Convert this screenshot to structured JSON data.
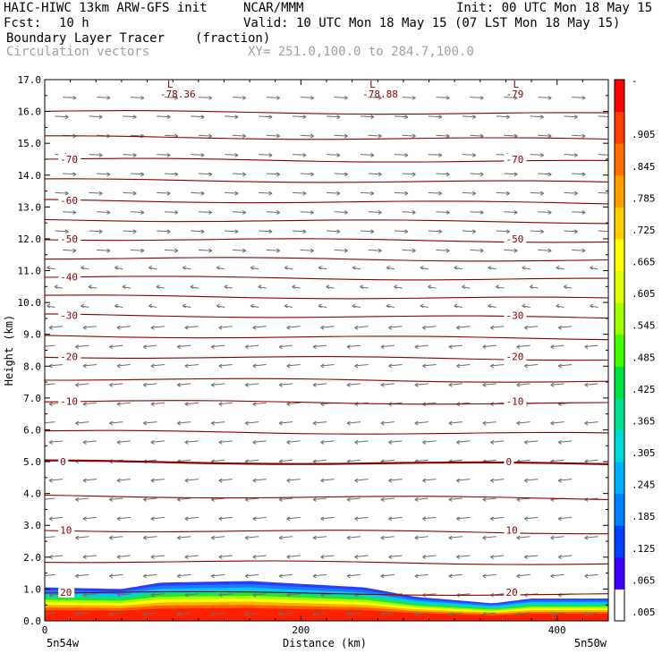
{
  "header": {
    "model": "HAIC-HIWC 13km ARW-GFS init",
    "org": "NCAR/MMM",
    "init": "Init: 00 UTC Mon 18 May 15",
    "fcst_label": "Fcst:",
    "fcst_value": "10 h",
    "valid": "Valid: 10 UTC Mon 18 May 15 (07 LST Mon 18 May 15)",
    "field": "Boundary Layer Tracer",
    "units": "(fraction)",
    "vectors": "Circulation vectors",
    "xy": "XY= 251.0,100.0 to 284.7,100.0"
  },
  "chart_data": {
    "type": "heatmap",
    "title": "Boundary Layer Tracer",
    "xlabel": "Distance (km)",
    "ylabel": "Height (km)",
    "xlim": [
      0,
      440
    ],
    "ylim": [
      0,
      17
    ],
    "x_ticks": [
      "0",
      "200",
      "400"
    ],
    "x_tick_values": [
      0,
      200,
      400
    ],
    "x_end_labels": [
      "5n54w",
      "5n50w"
    ],
    "y_ticks": [
      "0.0",
      "1.0",
      "2.0",
      "3.0",
      "4.0",
      "5.0",
      "6.0",
      "7.0",
      "8.0",
      "9.0",
      "10.0",
      "11.0",
      "12.0",
      "13.0",
      "14.0",
      "15.0",
      "16.0",
      "17.0"
    ],
    "y_tick_values": [
      0,
      1,
      2,
      3,
      4,
      5,
      6,
      7,
      8,
      9,
      10,
      11,
      12,
      13,
      14,
      15,
      16,
      17
    ],
    "colorbar": {
      "labels": [
        ".005",
        ".065",
        ".125",
        ".185",
        ".245",
        ".305",
        ".365",
        ".425",
        ".485",
        ".545",
        ".605",
        ".665",
        ".725",
        ".785",
        ".845",
        ".905"
      ],
      "top_label": "-",
      "colors": [
        "#ffffff",
        "#4000ff",
        "#0040ff",
        "#0080ff",
        "#00b0ff",
        "#00d8d8",
        "#00e090",
        "#00e040",
        "#40ff00",
        "#a0ff00",
        "#e0ff00",
        "#ffff00",
        "#ffd000",
        "#ffa000",
        "#ff7000",
        "#ff4000",
        "#ff0000"
      ]
    },
    "tracer_top_km": [
      {
        "x": 0,
        "top": 1.05
      },
      {
        "x": 60,
        "top": 1.0
      },
      {
        "x": 90,
        "top": 1.2
      },
      {
        "x": 160,
        "top": 1.25
      },
      {
        "x": 250,
        "top": 1.05
      },
      {
        "x": 290,
        "top": 0.75
      },
      {
        "x": 350,
        "top": 0.55
      },
      {
        "x": 380,
        "top": 0.7
      },
      {
        "x": 440,
        "top": 0.7
      }
    ],
    "temperature_contours": [
      {
        "label": "-70",
        "height_km": 14.5
      },
      {
        "label": "-60",
        "height_km": 13.2
      },
      {
        "label": "-50",
        "height_km": 12.0
      },
      {
        "label": "-40",
        "height_km": 10.8
      },
      {
        "label": "-30",
        "height_km": 9.6
      },
      {
        "label": "-20",
        "height_km": 8.3
      },
      {
        "label": "-10",
        "height_km": 6.9
      },
      {
        "label": "0",
        "height_km": 5.0
      },
      {
        "label": "10",
        "height_km": 2.85
      },
      {
        "label": "20",
        "height_km": 0.9
      }
    ],
    "minima_labels": [
      {
        "mark": "L",
        "value": "-78.36",
        "x": 90
      },
      {
        "mark": "L",
        "value": "-78.88",
        "x": 248
      },
      {
        "mark": "L",
        "value": "-79",
        "x": 360
      }
    ],
    "vectors": {
      "upper_direction": "east",
      "lower_direction": "west",
      "reversal_height_km": 11.5
    }
  }
}
